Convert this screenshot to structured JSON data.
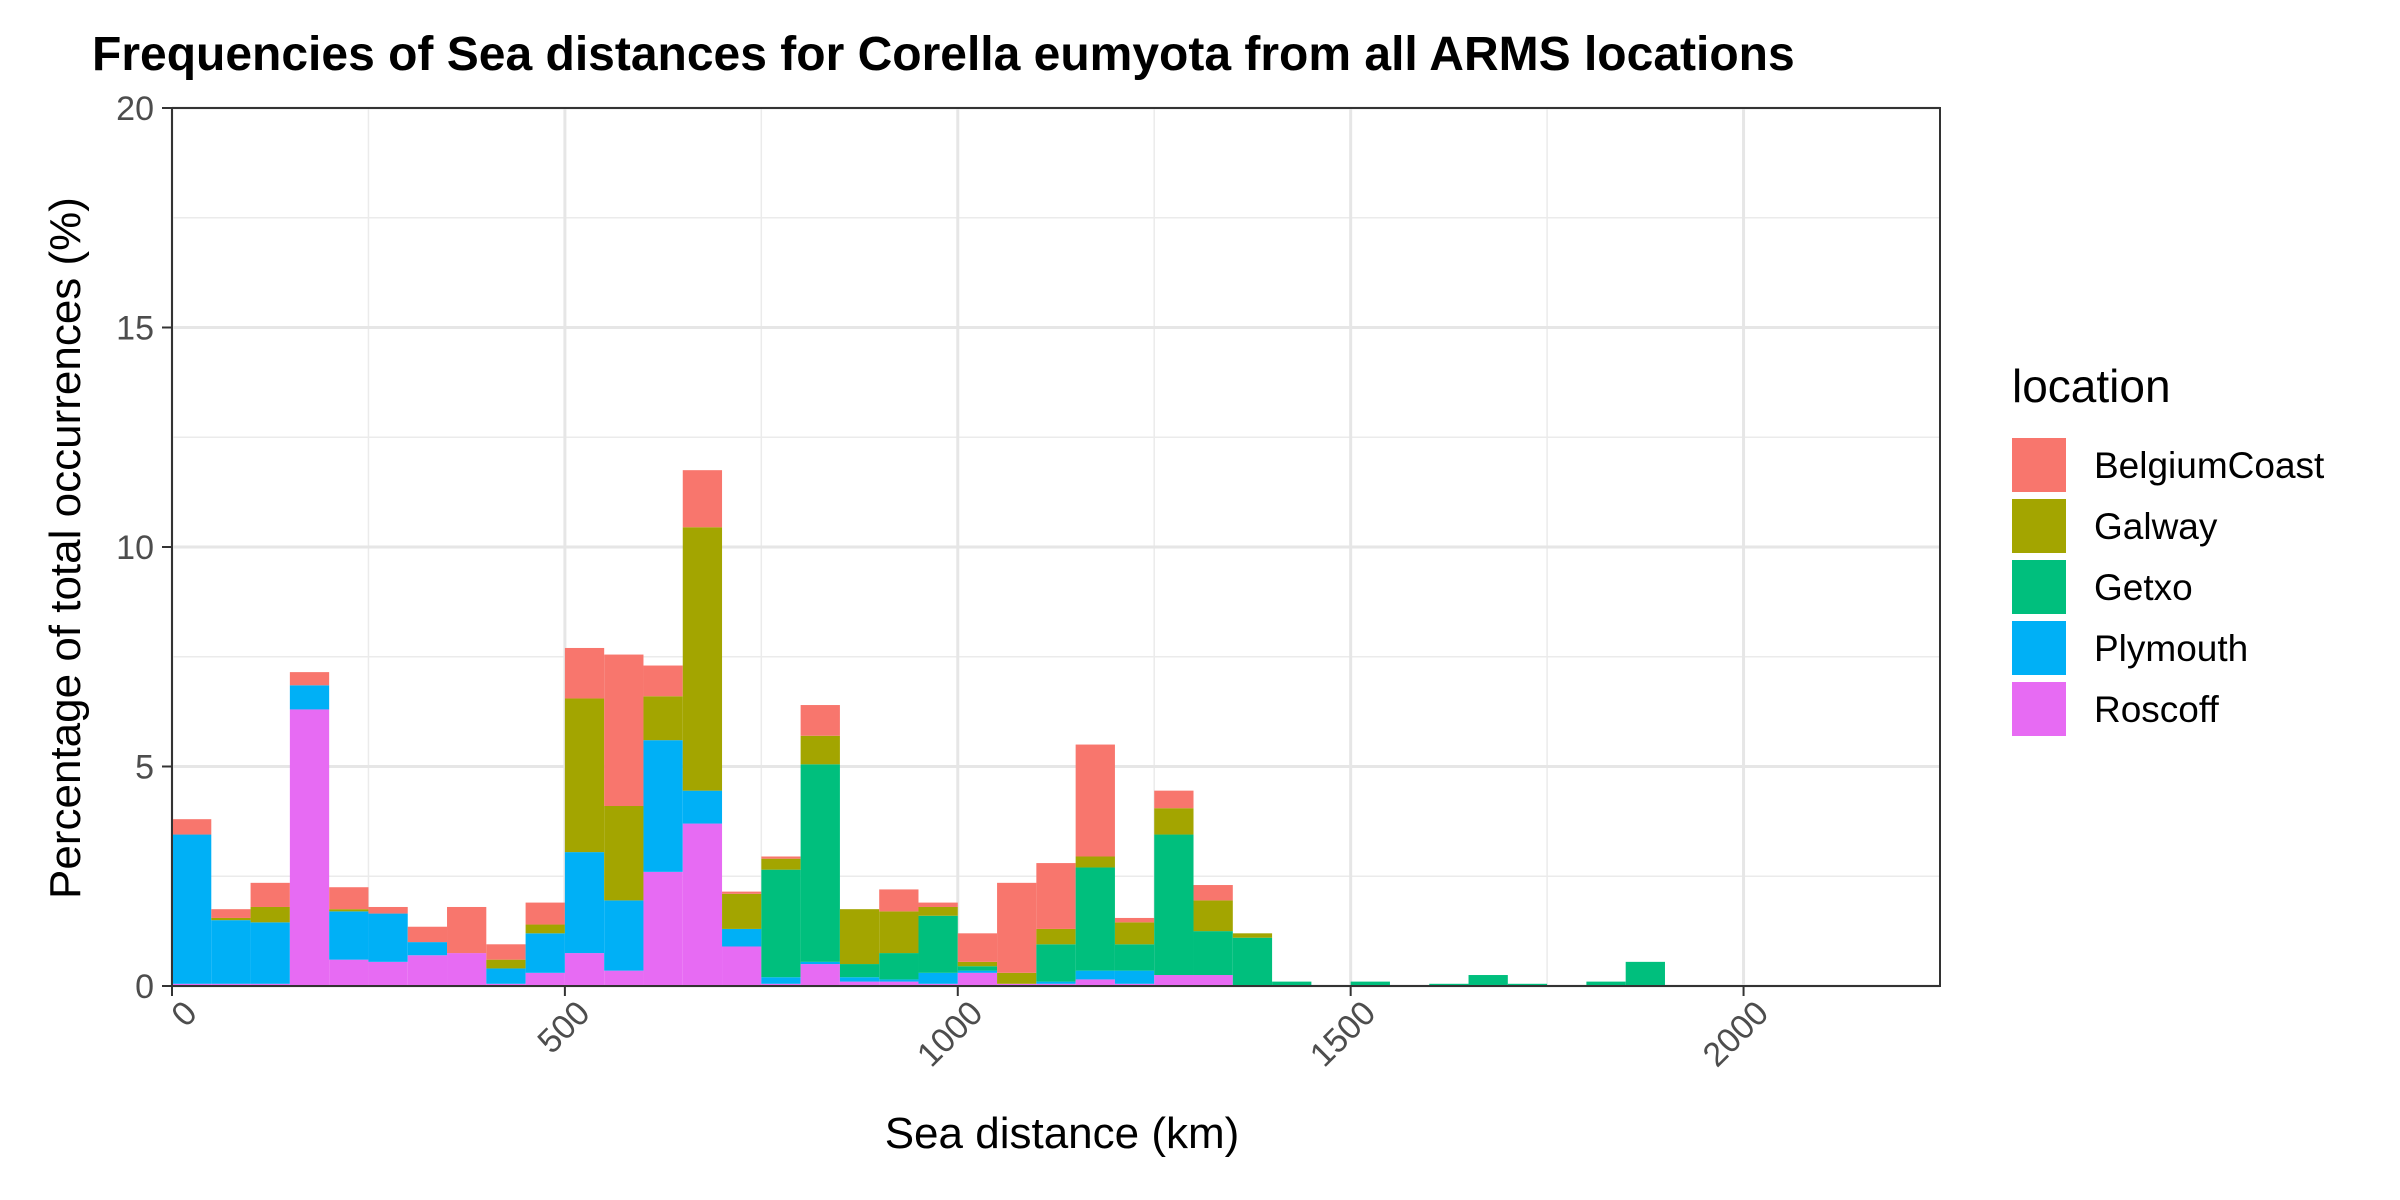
{
  "chart_data": {
    "type": "bar",
    "stacked": true,
    "title": "Frequencies of Sea distances for Corella eumyota from all ARMS locations",
    "xlabel": "Sea distance (km)",
    "ylabel": "Percentage of total occurrences (%)",
    "xlim": [
      0,
      2250
    ],
    "ylim": [
      0,
      20
    ],
    "bin_width": 50,
    "x_ticks": [
      0,
      500,
      1000,
      1500,
      2000
    ],
    "y_ticks": [
      0,
      5,
      10,
      15,
      20
    ],
    "grid": true,
    "legend": {
      "title": "location",
      "position": "right"
    },
    "colors": {
      "BelgiumCoast": "#F8766D",
      "Galway": "#A3A500",
      "Getxo": "#00BF7D",
      "Plymouth": "#00B0F6",
      "Roscoff": "#E76BF3"
    },
    "x": [
      25,
      75,
      125,
      175,
      225,
      275,
      325,
      375,
      425,
      475,
      525,
      575,
      625,
      675,
      725,
      775,
      825,
      875,
      925,
      975,
      1025,
      1075,
      1125,
      1175,
      1225,
      1275,
      1325,
      1375,
      1425,
      1475,
      1525,
      1575,
      1625,
      1675,
      1725,
      1775,
      1825,
      1875,
      1925,
      1975,
      2025,
      2075,
      2125,
      2175
    ],
    "series": [
      {
        "name": "Roscoff",
        "values": [
          0.05,
          0.05,
          0.05,
          6.3,
          0.6,
          0.55,
          0.7,
          0.75,
          0.05,
          0.3,
          0.75,
          0.35,
          2.6,
          3.7,
          0.9,
          0.05,
          0.5,
          0.1,
          0.1,
          0.05,
          0.3,
          0.05,
          0.05,
          0.15,
          0.05,
          0.25,
          0.25,
          0,
          0,
          0,
          0,
          0,
          0,
          0,
          0,
          0,
          0,
          0,
          0,
          0,
          0,
          0,
          0,
          0
        ]
      },
      {
        "name": "Plymouth",
        "values": [
          3.4,
          1.45,
          1.4,
          0.55,
          1.1,
          1.1,
          0.3,
          0,
          0.35,
          0.9,
          2.3,
          1.6,
          3.0,
          0.75,
          0.4,
          0.15,
          0.05,
          0.1,
          0.05,
          0.25,
          0.05,
          0,
          0.05,
          0.2,
          0.3,
          0,
          0,
          0,
          0,
          0,
          0,
          0,
          0,
          0,
          0,
          0,
          0,
          0,
          0,
          0,
          0,
          0,
          0,
          0
        ]
      },
      {
        "name": "Getxo",
        "values": [
          0,
          0,
          0,
          0,
          0,
          0,
          0,
          0,
          0,
          0,
          0,
          0,
          0,
          0,
          0,
          2.45,
          4.5,
          0.3,
          0.6,
          1.3,
          0.1,
          0,
          0.85,
          2.35,
          0.6,
          3.2,
          1.0,
          1.1,
          0.1,
          0,
          0.1,
          0,
          0.05,
          0.25,
          0.05,
          0,
          0.1,
          0.55,
          0,
          0,
          0,
          0,
          0,
          0
        ]
      },
      {
        "name": "Galway",
        "values": [
          0,
          0.05,
          0.35,
          0,
          0.05,
          0,
          0,
          0,
          0.2,
          0.2,
          3.5,
          2.15,
          1.0,
          6.0,
          0.8,
          0.25,
          0.65,
          1.25,
          0.95,
          0.2,
          0.1,
          0.25,
          0.35,
          0.25,
          0.5,
          0.6,
          0.7,
          0.1,
          0,
          0,
          0,
          0,
          0,
          0,
          0,
          0,
          0,
          0,
          0,
          0,
          0,
          0,
          0,
          0
        ]
      },
      {
        "name": "BelgiumCoast",
        "values": [
          0.35,
          0.2,
          0.55,
          0.3,
          0.5,
          0.15,
          0.35,
          1.05,
          0.35,
          0.5,
          1.15,
          3.45,
          0.7,
          1.3,
          0.05,
          0.05,
          0.7,
          0,
          0.5,
          0.1,
          0.65,
          2.05,
          1.5,
          2.55,
          0.1,
          0.4,
          0.35,
          0,
          0,
          0,
          0,
          0,
          0,
          0,
          0,
          0,
          0,
          0,
          0,
          0,
          0,
          0,
          0,
          0
        ]
      }
    ],
    "legend_order": [
      "BelgiumCoast",
      "Galway",
      "Getxo",
      "Plymouth",
      "Roscoff"
    ]
  }
}
